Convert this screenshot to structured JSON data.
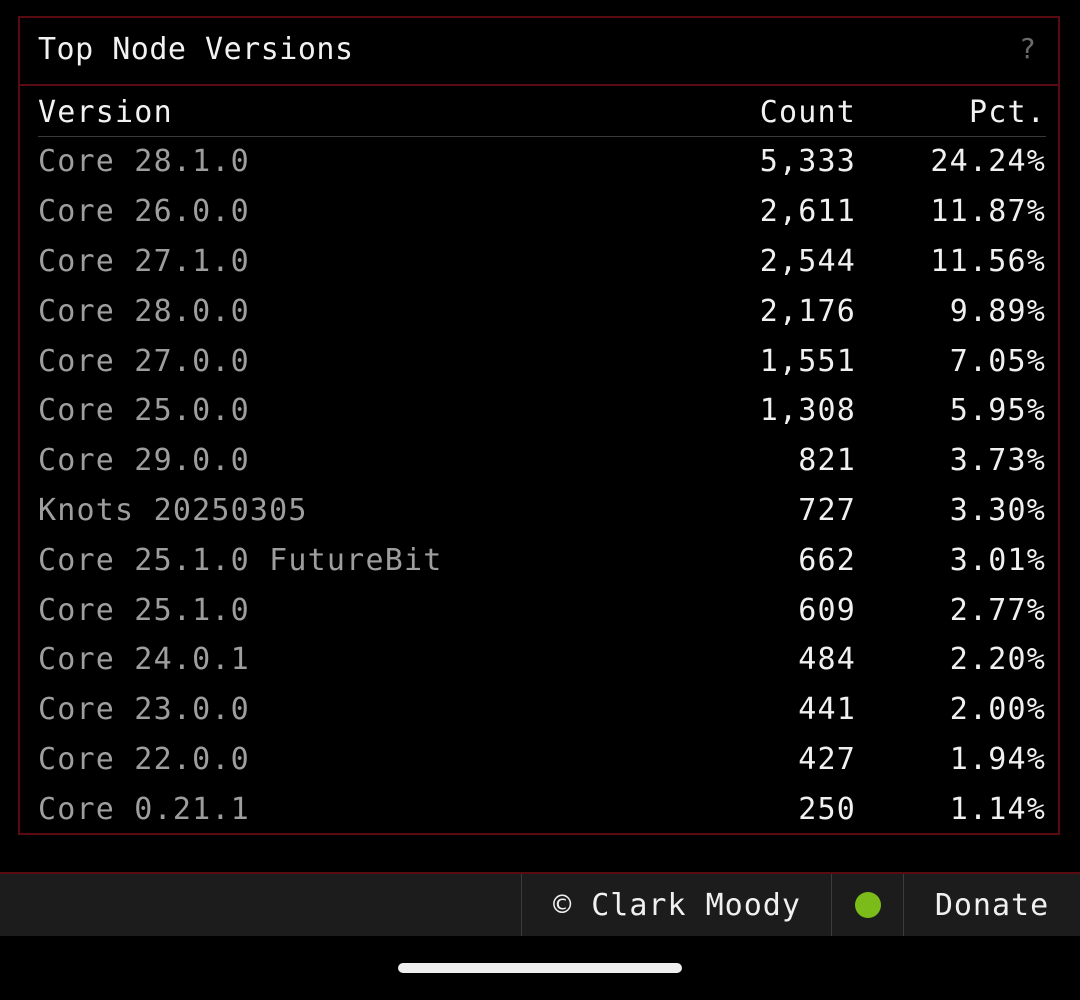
{
  "panel": {
    "title": "Top Node Versions",
    "help_icon": "?"
  },
  "table": {
    "headers": {
      "version": "Version",
      "count": "Count",
      "pct": "Pct."
    },
    "rows": [
      {
        "version": "Core 28.1.0",
        "count": "5,333",
        "pct": "24.24%"
      },
      {
        "version": "Core 26.0.0",
        "count": "2,611",
        "pct": "11.87%"
      },
      {
        "version": "Core 27.1.0",
        "count": "2,544",
        "pct": "11.56%"
      },
      {
        "version": "Core 28.0.0",
        "count": "2,176",
        "pct": "9.89%"
      },
      {
        "version": "Core 27.0.0",
        "count": "1,551",
        "pct": "7.05%"
      },
      {
        "version": "Core 25.0.0",
        "count": "1,308",
        "pct": "5.95%"
      },
      {
        "version": "Core 29.0.0",
        "count": "821",
        "pct": "3.73%"
      },
      {
        "version": "Knots 20250305",
        "count": "727",
        "pct": "3.30%"
      },
      {
        "version": "Core 25.1.0 FutureBit",
        "count": "662",
        "pct": "3.01%"
      },
      {
        "version": "Core 25.1.0",
        "count": "609",
        "pct": "2.77%"
      },
      {
        "version": "Core 24.0.1",
        "count": "484",
        "pct": "2.20%"
      },
      {
        "version": "Core 23.0.0",
        "count": "441",
        "pct": "2.00%"
      },
      {
        "version": "Core 22.0.0",
        "count": "427",
        "pct": "1.94%"
      },
      {
        "version": "Core 0.21.1",
        "count": "250",
        "pct": "1.14%"
      }
    ]
  },
  "footer": {
    "copyright": "© Clark Moody",
    "status_icon": "status-dot-icon",
    "status_color": "#7cbc1a",
    "donate": "Donate"
  },
  "colors": {
    "border_accent": "#5a0b11",
    "background": "#000000",
    "footer_bg": "#1c1c1c",
    "version_text": "#9e9e9e",
    "value_text": "#f0f0f0"
  }
}
